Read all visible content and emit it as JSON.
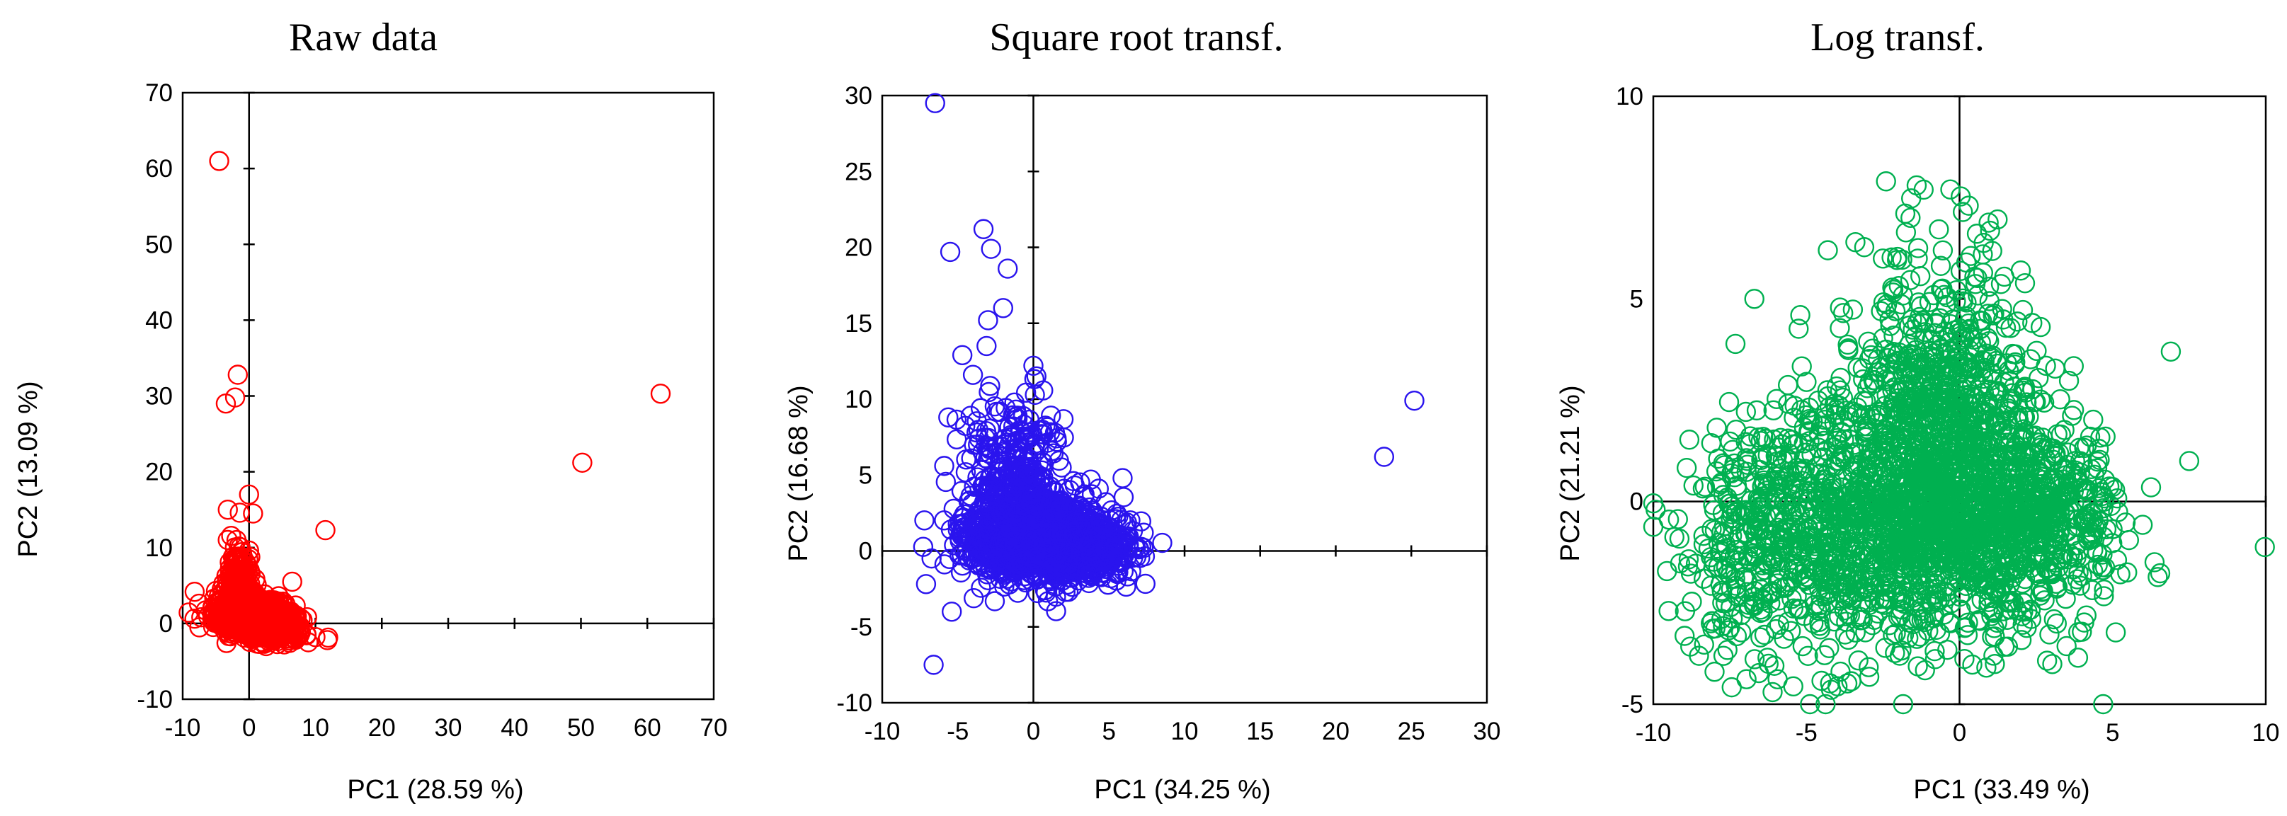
{
  "chart_data": [
    {
      "type": "scatter",
      "title": "Raw data",
      "xlabel": "PC1 (28.59 %)",
      "ylabel": "PC2 (13.09 %)",
      "xlim": [
        -10,
        70
      ],
      "ylim": [
        -10,
        70
      ],
      "xticks": [
        -10,
        0,
        10,
        20,
        30,
        40,
        50,
        60,
        70
      ],
      "yticks": [
        -10,
        0,
        10,
        20,
        30,
        40,
        50,
        60,
        70
      ],
      "xtick_labels": [
        "-10",
        "0",
        "10",
        "20",
        "30",
        "40",
        "50",
        "60",
        "70"
      ],
      "ytick_labels": [
        "-10",
        "0",
        "10",
        "20",
        "30",
        "40",
        "50",
        "60",
        "70"
      ],
      "grid": false,
      "color": "#ff0000",
      "marker": "open circle",
      "outliers": [
        {
          "x": -4.5,
          "y": 61
        },
        {
          "x": 62,
          "y": 30.3
        },
        {
          "x": 50.2,
          "y": 21.2
        },
        {
          "x": -1.7,
          "y": 32.8
        },
        {
          "x": -3.5,
          "y": 29
        },
        {
          "x": -2.1,
          "y": 29.8
        },
        {
          "x": 11.5,
          "y": 12.3
        },
        {
          "x": 0,
          "y": 17
        },
        {
          "x": 0.6,
          "y": 14.5
        },
        {
          "x": -1.4,
          "y": 14.6
        },
        {
          "x": -3.2,
          "y": 15
        },
        {
          "x": -5.2,
          "y": 0.1
        },
        {
          "x": 11.8,
          "y": -2.2
        },
        {
          "x": 10,
          "y": -1.8
        },
        {
          "x": 6.5,
          "y": 5.5
        }
      ],
      "cloud": [
        {
          "x": 0,
          "y": 1,
          "sx": 2.6,
          "sy": 1.2,
          "n": 900
        },
        {
          "x": -1.5,
          "y": 5,
          "sx": 1,
          "sy": 2.5,
          "n": 200
        },
        {
          "x": 4,
          "y": -0.5,
          "sx": 2.2,
          "sy": 1.0,
          "n": 250
        }
      ]
    },
    {
      "type": "scatter",
      "title": "Square root transf.",
      "xlabel": "PC1 (34.25 %)",
      "ylabel": "PC2 (16.68 %)",
      "xlim": [
        -10,
        30
      ],
      "ylim": [
        -10,
        30
      ],
      "xticks": [
        -10,
        -5,
        0,
        5,
        10,
        15,
        20,
        25,
        30
      ],
      "yticks": [
        -10,
        -5,
        0,
        5,
        10,
        15,
        20,
        25,
        30
      ],
      "xtick_labels": [
        "-10",
        "-5",
        "0",
        "5",
        "10",
        "15",
        "20",
        "25",
        "30"
      ],
      "ytick_labels": [
        "-10",
        "-5",
        "0",
        "5",
        "10",
        "15",
        "20",
        "25",
        "30"
      ],
      "grid": false,
      "color": "#2a14ee",
      "marker": "open circle",
      "outliers": [
        {
          "x": -6.5,
          "y": 29.5
        },
        {
          "x": -5.5,
          "y": 19.7
        },
        {
          "x": -3.3,
          "y": 21.2
        },
        {
          "x": -2.8,
          "y": 19.9
        },
        {
          "x": -1.7,
          "y": 18.6
        },
        {
          "x": -2,
          "y": 16
        },
        {
          "x": -3,
          "y": 15.2
        },
        {
          "x": -3.1,
          "y": 13.5
        },
        {
          "x": 0,
          "y": 12.2
        },
        {
          "x": 0.2,
          "y": 11.5
        },
        {
          "x": -4.7,
          "y": 12.9
        },
        {
          "x": -4,
          "y": 11.6
        },
        {
          "x": 25.2,
          "y": 9.9
        },
        {
          "x": 23.2,
          "y": 6.2
        },
        {
          "x": -6.6,
          "y": -7.5
        },
        {
          "x": -5.4,
          "y": -4
        },
        {
          "x": 5.9,
          "y": 4.8
        },
        {
          "x": 7.3,
          "y": 1.2
        },
        {
          "x": -5.9,
          "y": 5.6
        },
        {
          "x": 3.8,
          "y": 4.7
        }
      ],
      "cloud": [
        {
          "x": 0,
          "y": 0.8,
          "sx": 2.2,
          "sy": 1.3,
          "n": 1200
        },
        {
          "x": -1.5,
          "y": 5,
          "sx": 1.6,
          "sy": 2.5,
          "n": 300
        },
        {
          "x": 3.5,
          "y": 0.2,
          "sx": 1.7,
          "sy": 1.0,
          "n": 300
        }
      ]
    },
    {
      "type": "scatter",
      "title": "Log transf.",
      "xlabel": "PC1 (33.49 %)",
      "ylabel": "PC2 (21.21 %)",
      "xlim": [
        -10,
        10
      ],
      "ylim": [
        -5,
        10
      ],
      "xticks": [
        -10,
        -5,
        0,
        5,
        10
      ],
      "yticks": [
        -5,
        0,
        5,
        10
      ],
      "xtick_labels": [
        "-10",
        "-5",
        "0",
        "5",
        "10"
      ],
      "ytick_labels": [
        "-5",
        "0",
        "5",
        "10"
      ],
      "grid": false,
      "color": "#00b050",
      "marker": "open circle",
      "outliers": [
        {
          "x": -0.3,
          "y": 7.7
        },
        {
          "x": -1.4,
          "y": 7.8
        },
        {
          "x": 0.3,
          "y": 7.3
        },
        {
          "x": -2.4,
          "y": 7.9
        },
        {
          "x": -1.6,
          "y": 7
        },
        {
          "x": -3.4,
          "y": 6.4
        },
        {
          "x": -4.3,
          "y": 6.2
        },
        {
          "x": -6.7,
          "y": 5
        },
        {
          "x": -5.2,
          "y": 4.6
        },
        {
          "x": 6.9,
          "y": 3.7
        },
        {
          "x": 7.5,
          "y": 1
        },
        {
          "x": -9.5,
          "y": -2.7
        },
        {
          "x": -8,
          "y": -4.2
        },
        {
          "x": 4.3,
          "y": 0.8
        },
        {
          "x": 2,
          "y": 5.7
        }
      ],
      "cloud": [
        {
          "x": -1.5,
          "y": -0.5,
          "sx": 2.8,
          "sy": 1.5,
          "n": 1600
        },
        {
          "x": -0.5,
          "y": 2.6,
          "sx": 1.4,
          "sy": 1.8,
          "n": 600
        },
        {
          "x": -6.5,
          "y": -1.2,
          "sx": 1.3,
          "sy": 1.5,
          "n": 250
        },
        {
          "x": 2.5,
          "y": -0.2,
          "sx": 1.2,
          "sy": 1.1,
          "n": 350
        }
      ]
    }
  ]
}
